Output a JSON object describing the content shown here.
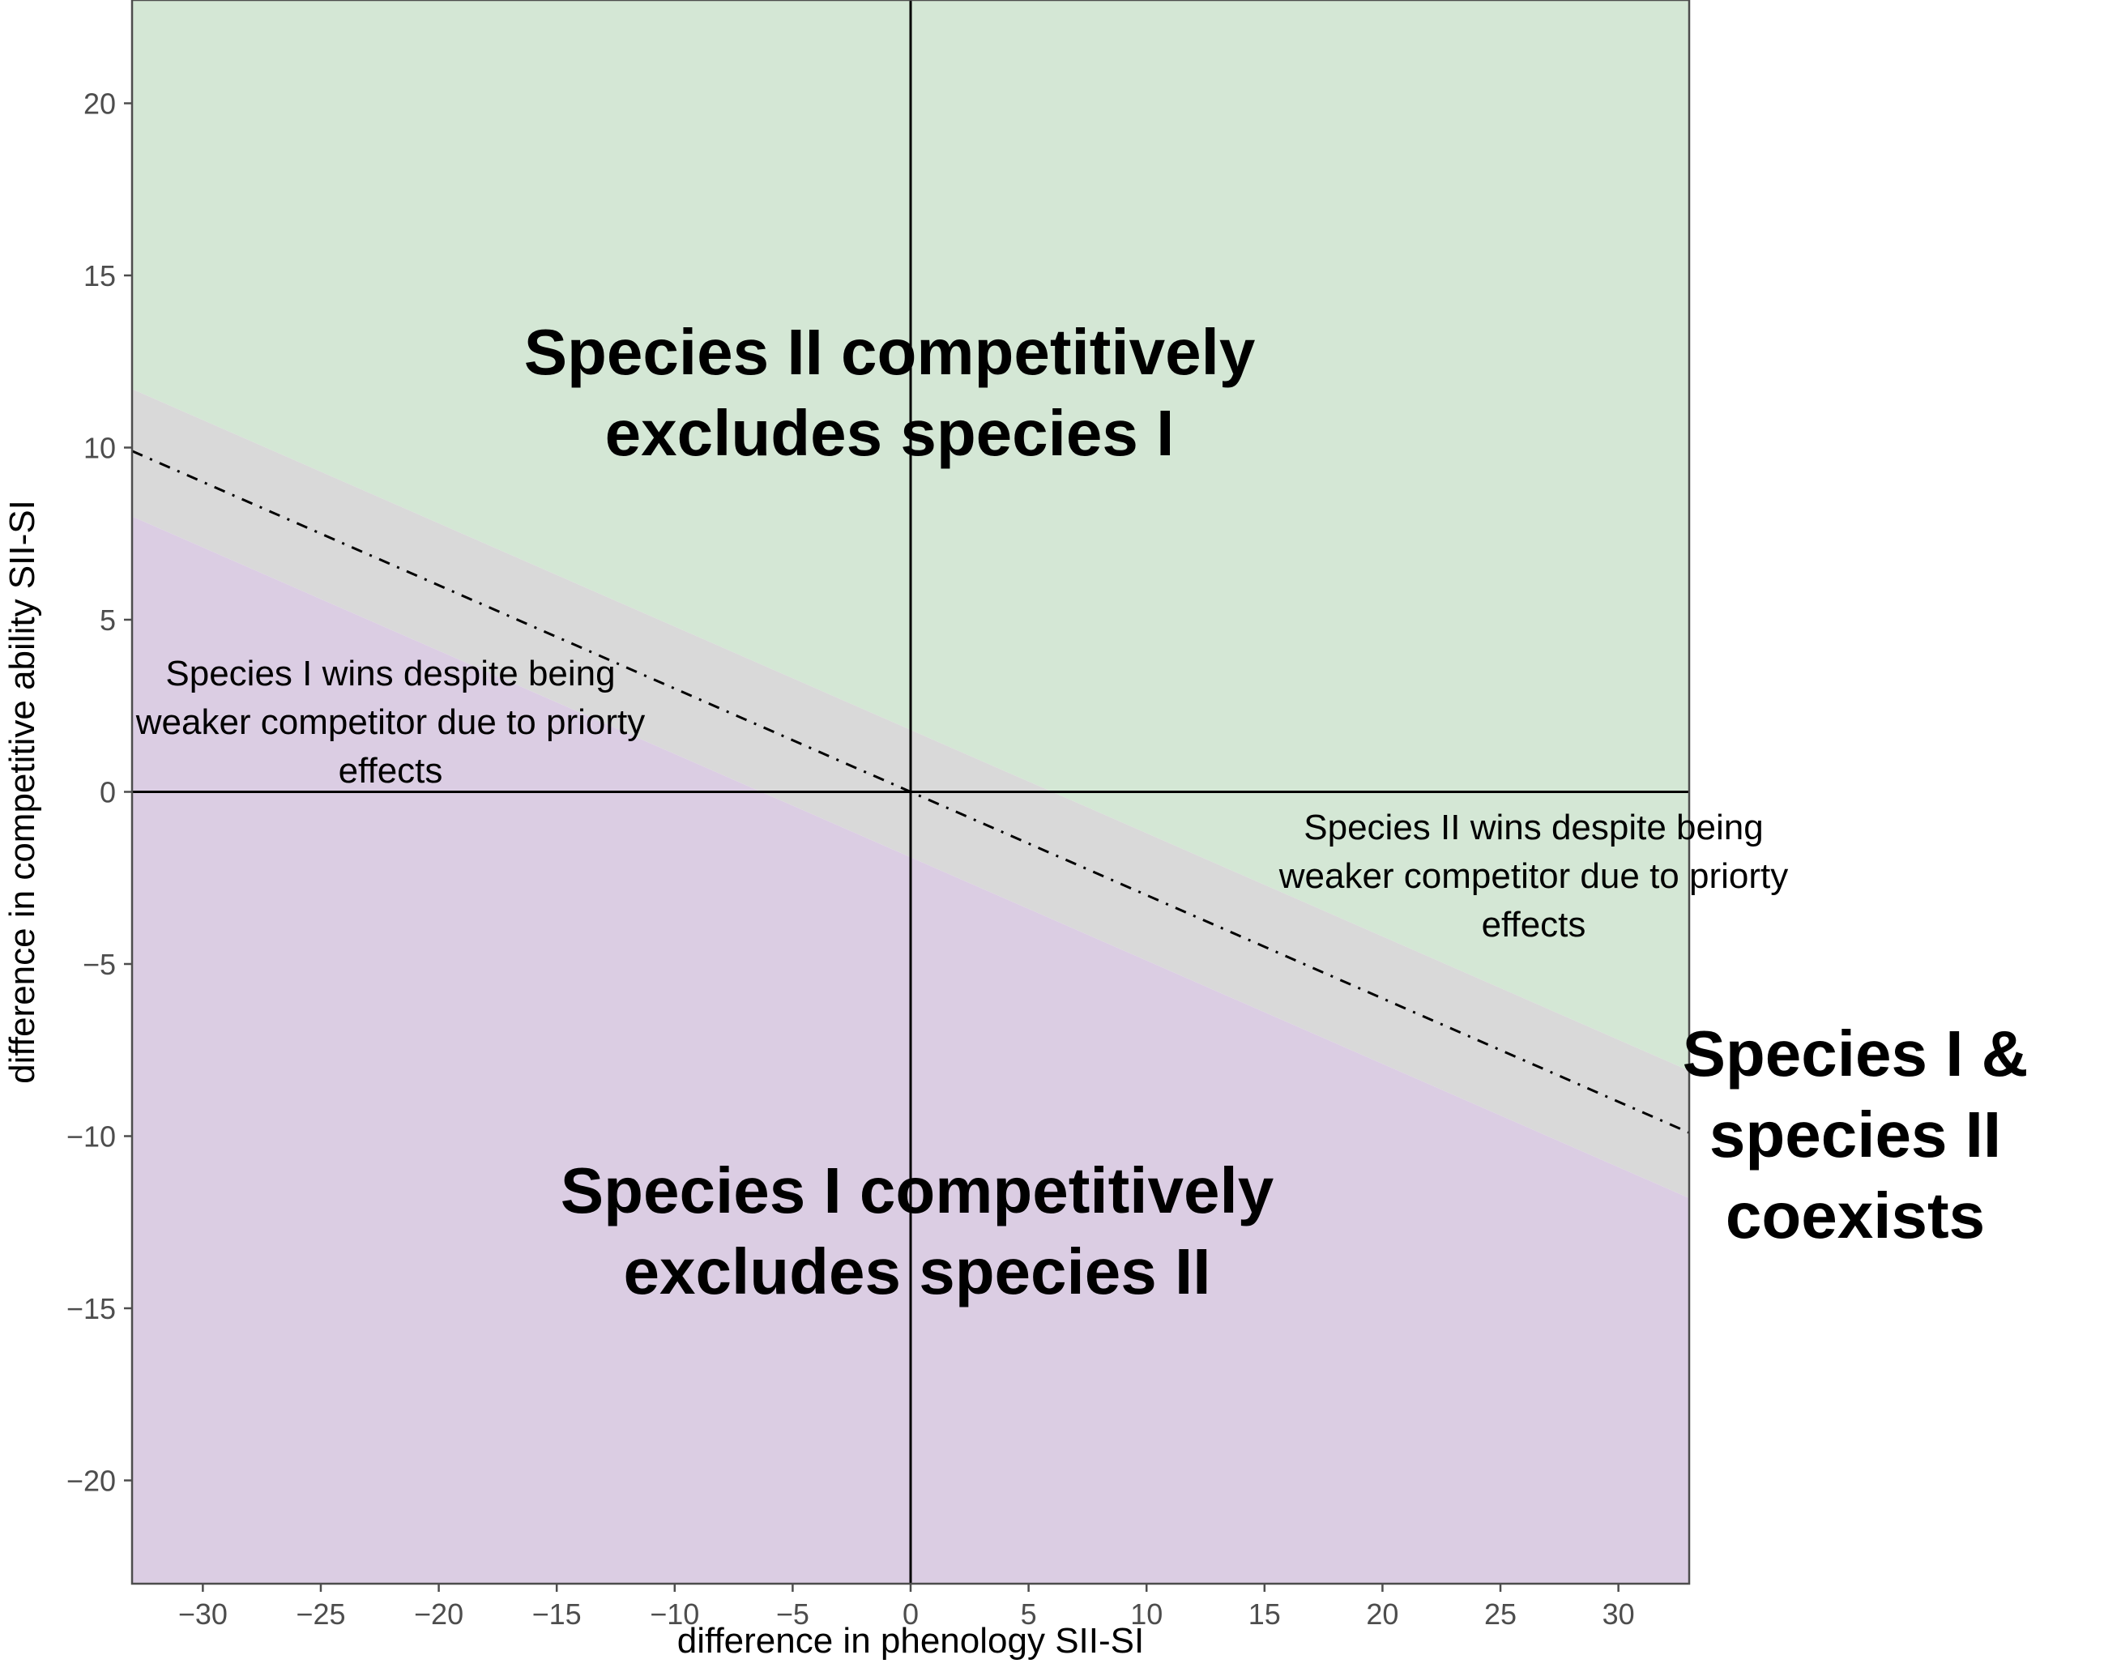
{
  "chart_data": {
    "type": "area",
    "xlabel": "difference in phenology SII-SI",
    "ylabel": "difference in competitive ability SII-SI",
    "xlim": [
      -33,
      33
    ],
    "ylim": [
      -23,
      23
    ],
    "x_ticks": [
      -30,
      -25,
      -20,
      -15,
      -10,
      -5,
      0,
      5,
      10,
      15,
      20,
      25,
      30
    ],
    "y_ticks": [
      -20,
      -15,
      -10,
      -5,
      0,
      5,
      10,
      15,
      20
    ],
    "x_tick_labels": [
      "−30",
      "−25",
      "−20",
      "−15",
      "−10",
      "−5",
      "0",
      "5",
      "10",
      "15",
      "20",
      "25",
      "30"
    ],
    "y_tick_labels": [
      "−20",
      "−15",
      "−10",
      "−5",
      "0",
      "5",
      "10",
      "15",
      "20"
    ],
    "grid": false,
    "reference_lines": {
      "x": 0,
      "y": 0
    },
    "dashed_line": {
      "slope": -0.3,
      "intercept": 0
    },
    "coexistence_band": {
      "slope": -0.3,
      "upper_intercept": 1.8,
      "lower_intercept": -1.9
    },
    "regions": [
      {
        "label": "Species II competitively excludes species I",
        "color": "#d4e7d5"
      },
      {
        "label": "Species I & species II coexists",
        "color": "#d9d9d9"
      },
      {
        "label": "Species I competitively excludes species II",
        "color": "#dbcde3"
      }
    ],
    "annotations": {
      "top_region": [
        "Species II competitively",
        "excludes species I"
      ],
      "bottom_region": [
        "Species I competitively",
        "excludes species II"
      ],
      "coexist": [
        "Species I &",
        "species II",
        "coexists"
      ],
      "left_priority": [
        "Species I wins despite being",
        "weaker competitor due to priorty",
        "effects"
      ],
      "right_priority": [
        "Species II wins despite being",
        "weaker competitor due to priorty",
        "effects"
      ]
    }
  }
}
